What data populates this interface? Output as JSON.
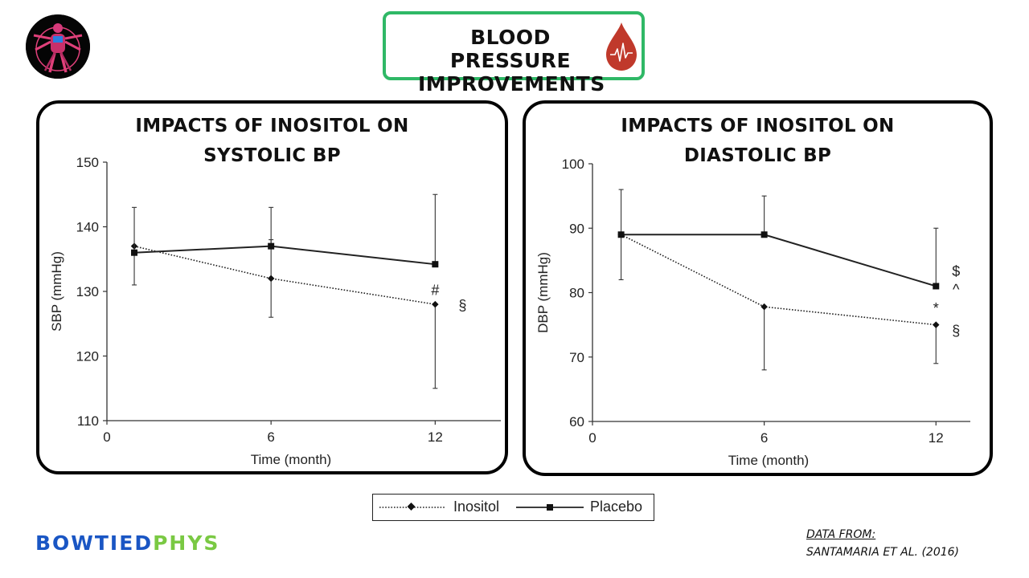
{
  "header": {
    "title_line1": "BLOOD PRESSURE",
    "title_line2": "IMPROVEMENTS"
  },
  "colors": {
    "accent_green": "#2fb866",
    "drop_red": "#c0392b",
    "brand_blue": "#1a56c4",
    "brand_green": "#7ac943"
  },
  "icons": {
    "logo": "vitruvian-man-logo",
    "drop": "blood-drop-icon"
  },
  "chart_data": [
    {
      "type": "line",
      "title_line1": "IMPACTS OF INOSITOL ON",
      "title_line2": "SYSTOLIC BP",
      "xlabel": "Time (month)",
      "ylabel": "SBP (mmHg)",
      "xlim": [
        0,
        14.4
      ],
      "ylim": [
        110,
        150
      ],
      "xticks": [
        "0",
        "6",
        "12"
      ],
      "yticks": [
        "110",
        "120",
        "130",
        "140",
        "150"
      ],
      "series": [
        {
          "name": "Inositol",
          "style": "dotted",
          "marker": "diamond",
          "x": [
            1,
            6,
            12
          ],
          "y": [
            137,
            132,
            128
          ],
          "err_low": [
            null,
            126,
            115
          ],
          "err_high": [
            null,
            138,
            128
          ]
        },
        {
          "name": "Placebo",
          "style": "solid",
          "marker": "square",
          "x": [
            1,
            6,
            12
          ],
          "y": [
            136,
            137,
            134.2
          ],
          "err_low": [
            131,
            137,
            134.2
          ],
          "err_high": [
            143,
            143,
            145
          ]
        }
      ],
      "annotations": [
        {
          "text": "#",
          "x": 12,
          "y": 130.2
        },
        {
          "text": "§",
          "x": 13,
          "y": 127.8
        }
      ]
    },
    {
      "type": "line",
      "title_line1": "IMPACTS OF INOSITOL ON",
      "title_line2": "DIASTOLIC BP",
      "xlabel": "Time (month)",
      "ylabel": "DBP (mmHg)",
      "xlim": [
        0,
        13.2
      ],
      "ylim": [
        60,
        100
      ],
      "xticks": [
        "0",
        "6",
        "12"
      ],
      "yticks": [
        "60",
        "70",
        "80",
        "90",
        "100"
      ],
      "series": [
        {
          "name": "Inositol",
          "style": "dotted",
          "marker": "diamond",
          "x": [
            1,
            6,
            12
          ],
          "y": [
            89,
            77.8,
            75
          ],
          "err_low": [
            null,
            68,
            69
          ],
          "err_high": [
            null,
            77.8,
            75
          ]
        },
        {
          "name": "Placebo",
          "style": "solid",
          "marker": "square",
          "x": [
            1,
            6,
            12
          ],
          "y": [
            89,
            89,
            81
          ],
          "err_low": [
            82,
            89,
            81
          ],
          "err_high": [
            96,
            95,
            90
          ]
        }
      ],
      "annotations": [
        {
          "text": "$",
          "x": 12.7,
          "y": 83.3
        },
        {
          "text": "^",
          "x": 12.7,
          "y": 80.5
        },
        {
          "text": "*",
          "x": 12,
          "y": 77.6
        },
        {
          "text": "§",
          "x": 12.7,
          "y": 74.1
        }
      ]
    }
  ],
  "legend": {
    "items": [
      "Inositol",
      "Placebo"
    ]
  },
  "brand": {
    "part1": "BOWTIED",
    "part2": "PHYS"
  },
  "source": {
    "label": "DATA FROM:",
    "ref": "SANTAMARIA ET AL. (2016)"
  }
}
